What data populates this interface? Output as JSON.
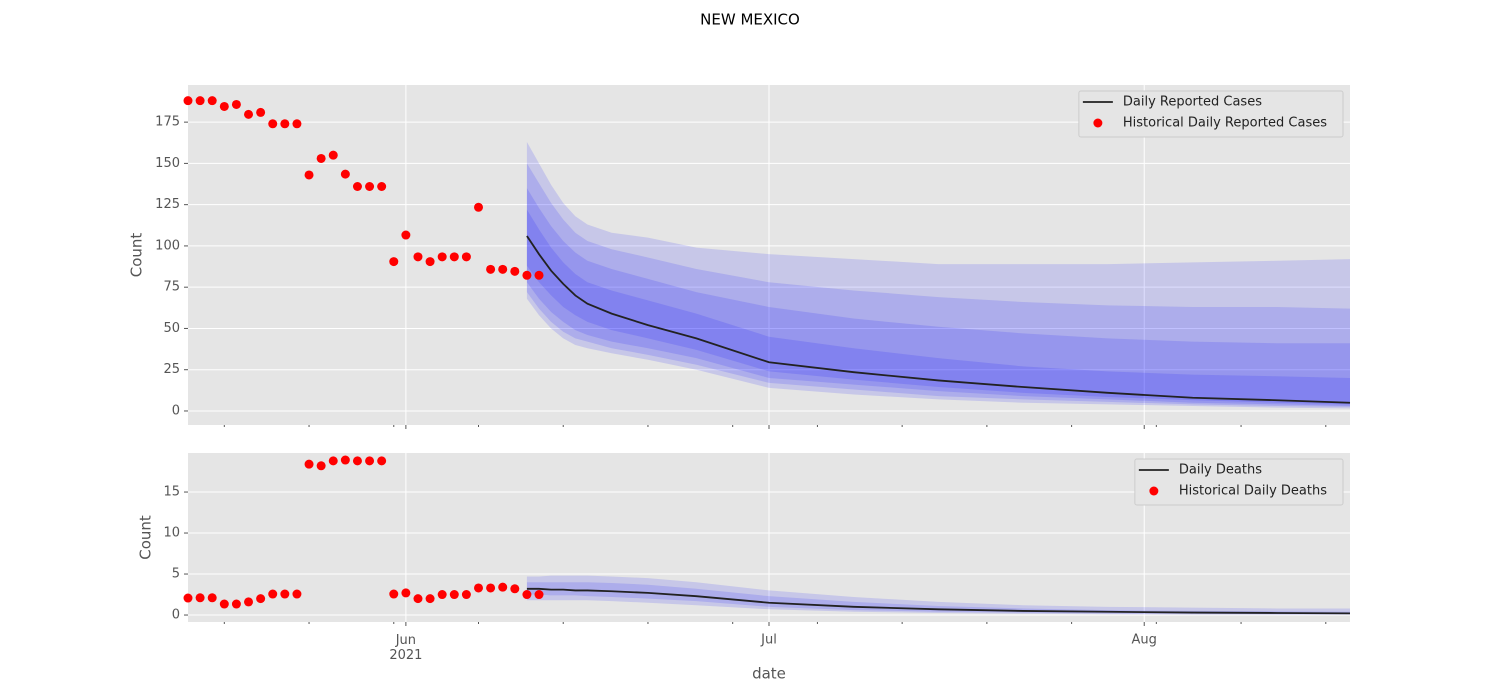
{
  "title": "NEW MEXICO",
  "chart_data": [
    {
      "type": "line",
      "y_label": "Count",
      "grid": true,
      "legend": "upper right",
      "xlim": [
        "2021-05-14",
        "2021-08-18"
      ],
      "ylim": [
        -8.5,
        197.5
      ],
      "yticks": [
        0,
        25,
        50,
        75,
        100,
        125,
        150,
        175
      ],
      "xticks": [
        "2021-06-01",
        "2021-07-01",
        "2021-08-01"
      ],
      "xminorticks": [
        "2021-05-17",
        "2021-05-24",
        "2021-05-31",
        "2021-06-07",
        "2021-06-14",
        "2021-06-21",
        "2021-06-28",
        "2021-07-05",
        "2021-07-12",
        "2021-07-19",
        "2021-07-26",
        "2021-08-02",
        "2021-08-09",
        "2021-08-16"
      ],
      "x": [
        "2021-06-11",
        "2021-06-12",
        "2021-06-13",
        "2021-06-14",
        "2021-06-15",
        "2021-06-16",
        "2021-06-18",
        "2021-06-21",
        "2021-06-25",
        "2021-07-01",
        "2021-07-08",
        "2021-07-15",
        "2021-07-22",
        "2021-07-29",
        "2021-08-05",
        "2021-08-12",
        "2021-08-18"
      ],
      "band_color": "#0000ff",
      "band_opacity": 0.13,
      "bands": [
        {
          "upper": [
            163,
            150,
            137,
            126,
            118,
            113,
            108,
            105,
            99,
            95,
            92,
            89,
            89,
            89,
            90,
            91,
            92
          ],
          "lower": [
            68,
            58,
            50,
            44,
            40,
            38,
            35,
            31,
            25,
            14,
            10,
            7,
            5,
            4,
            3,
            2,
            1.5
          ]
        },
        {
          "upper": [
            150,
            138,
            126,
            116,
            108,
            103,
            98,
            93,
            86,
            78,
            73,
            69,
            66,
            64,
            63,
            63,
            62
          ],
          "lower": [
            72,
            62,
            54,
            48,
            44,
            42,
            38,
            34,
            28,
            17,
            13,
            9,
            7,
            5.5,
            4,
            3,
            2.5
          ]
        },
        {
          "upper": [
            135,
            123,
            112,
            103,
            96,
            91,
            86,
            80,
            72,
            63,
            56,
            51,
            47,
            44,
            42,
            41,
            41
          ],
          "lower": [
            78,
            68,
            60,
            54,
            49,
            46,
            42,
            38,
            32,
            20,
            16,
            12,
            9,
            7,
            5,
            4,
            3
          ]
        },
        {
          "upper": [
            122,
            110,
            99,
            90,
            83,
            78,
            73,
            67,
            59,
            45,
            38,
            32,
            27,
            24,
            22,
            21,
            20
          ],
          "lower": [
            88,
            78,
            70,
            63,
            58,
            54,
            49,
            44,
            37,
            24,
            19,
            14.5,
            11,
            8.5,
            6.5,
            5,
            4
          ]
        }
      ],
      "series": [
        {
          "name": "Daily Reported Cases",
          "type": "line",
          "color": "#222222",
          "values": [
            106,
            95,
            85,
            77,
            70,
            65,
            59,
            52,
            44,
            29.5,
            23.5,
            18.5,
            14.5,
            11,
            8,
            6.5,
            5
          ]
        },
        {
          "name": "Historical Daily Reported Cases",
          "type": "scatter",
          "color": "#ff0000",
          "x": [
            "2021-05-14",
            "2021-05-15",
            "2021-05-16",
            "2021-05-17",
            "2021-05-18",
            "2021-05-19",
            "2021-05-20",
            "2021-05-21",
            "2021-05-22",
            "2021-05-23",
            "2021-05-24",
            "2021-05-25",
            "2021-05-26",
            "2021-05-27",
            "2021-05-28",
            "2021-05-29",
            "2021-05-30",
            "2021-05-31",
            "2021-06-01",
            "2021-06-02",
            "2021-06-03",
            "2021-06-04",
            "2021-06-05",
            "2021-06-06",
            "2021-06-07",
            "2021-06-08",
            "2021-06-09",
            "2021-06-10",
            "2021-06-11",
            "2021-06-12"
          ],
          "values": [
            188,
            188,
            188,
            184.5,
            185.7,
            179.7,
            180.9,
            174,
            174,
            174,
            143,
            153,
            155,
            143.5,
            136,
            136,
            136,
            90.5,
            106.6,
            93.4,
            90.5,
            93.4,
            93.4,
            93.4,
            123.4,
            85.8,
            85.8,
            84.6,
            82.2,
            82.2
          ]
        }
      ]
    },
    {
      "type": "line",
      "y_label": "Count",
      "x_label": "date",
      "grid": true,
      "legend": "upper right",
      "xlim": [
        "2021-05-14",
        "2021-08-18"
      ],
      "ylim": [
        -0.85,
        19.76
      ],
      "yticks": [
        0,
        5,
        10,
        15
      ],
      "xticks": [
        {
          "value": "2021-06-01",
          "label": "Jun\n2021"
        },
        {
          "value": "2021-07-01",
          "label": "Jul"
        },
        {
          "value": "2021-08-01",
          "label": "Aug"
        }
      ],
      "xminorticks": [
        "2021-05-17",
        "2021-05-24",
        "2021-05-31",
        "2021-06-07",
        "2021-06-14",
        "2021-06-21",
        "2021-06-28",
        "2021-07-05",
        "2021-07-12",
        "2021-07-19",
        "2021-07-26",
        "2021-08-02",
        "2021-08-09",
        "2021-08-16"
      ],
      "x": [
        "2021-06-11",
        "2021-06-12",
        "2021-06-13",
        "2021-06-14",
        "2021-06-15",
        "2021-06-16",
        "2021-06-18",
        "2021-06-21",
        "2021-06-25",
        "2021-07-01",
        "2021-07-08",
        "2021-07-15",
        "2021-07-22",
        "2021-07-29",
        "2021-08-05",
        "2021-08-12",
        "2021-08-18"
      ],
      "band_color": "#0000ff",
      "band_opacity": 0.13,
      "bands": [
        {
          "upper": [
            4.7,
            4.7,
            4.8,
            4.8,
            4.8,
            4.8,
            4.7,
            4.5,
            4.0,
            3.0,
            2.2,
            1.6,
            1.2,
            1.0,
            0.9,
            0.8,
            0.8
          ],
          "lower": [
            1.8,
            1.8,
            1.8,
            1.8,
            1.8,
            1.8,
            1.7,
            1.5,
            1.2,
            0.7,
            0.4,
            0.25,
            0.15,
            0.1,
            0.05,
            0.05,
            0.05
          ]
        },
        {
          "upper": [
            4.0,
            4.0,
            4.0,
            4.0,
            4.0,
            4.0,
            3.9,
            3.7,
            3.2,
            2.3,
            1.6,
            1.1,
            0.8,
            0.6,
            0.5,
            0.45,
            0.4
          ],
          "lower": [
            2.5,
            2.5,
            2.4,
            2.4,
            2.4,
            2.3,
            2.2,
            2.0,
            1.7,
            1.0,
            0.6,
            0.4,
            0.3,
            0.2,
            0.15,
            0.1,
            0.1
          ]
        }
      ],
      "series": [
        {
          "name": "Daily Deaths",
          "type": "line",
          "color": "#222222",
          "values": [
            3.2,
            3.2,
            3.1,
            3.1,
            3.0,
            3.0,
            2.9,
            2.7,
            2.3,
            1.5,
            1.0,
            0.7,
            0.5,
            0.4,
            0.3,
            0.25,
            0.2
          ]
        },
        {
          "name": "Historical Daily Deaths",
          "type": "scatter",
          "color": "#ff0000",
          "x": [
            "2021-05-14",
            "2021-05-15",
            "2021-05-16",
            "2021-05-17",
            "2021-05-18",
            "2021-05-19",
            "2021-05-20",
            "2021-05-21",
            "2021-05-22",
            "2021-05-23",
            "2021-05-24",
            "2021-05-25",
            "2021-05-26",
            "2021-05-27",
            "2021-05-28",
            "2021-05-29",
            "2021-05-30",
            "2021-05-31",
            "2021-06-01",
            "2021-06-02",
            "2021-06-03",
            "2021-06-04",
            "2021-06-05",
            "2021-06-06",
            "2021-06-07",
            "2021-06-08",
            "2021-06-09",
            "2021-06-10",
            "2021-06-11",
            "2021-06-12"
          ],
          "values": [
            2.07,
            2.1,
            2.1,
            1.34,
            1.34,
            1.6,
            2.0,
            2.56,
            2.56,
            2.56,
            18.4,
            18.2,
            18.8,
            18.9,
            18.8,
            18.8,
            18.8,
            2.56,
            2.7,
            2.0,
            2.0,
            2.5,
            2.5,
            2.5,
            3.3,
            3.3,
            3.4,
            3.2,
            2.5,
            2.5
          ]
        }
      ]
    }
  ]
}
